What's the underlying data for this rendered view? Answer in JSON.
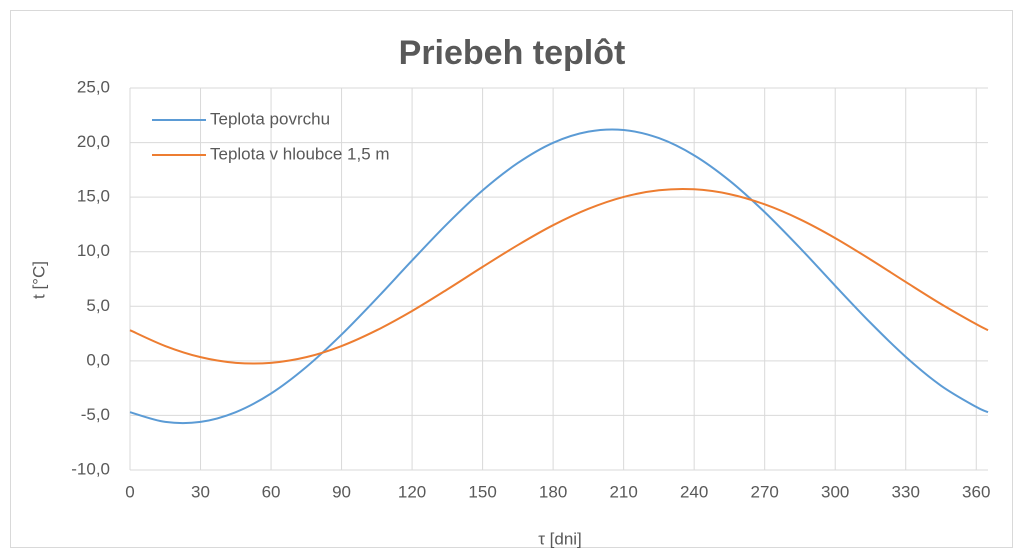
{
  "chart_data": {
    "type": "line",
    "title": "Priebeh teplôt",
    "xlabel": "τ [dni]",
    "ylabel": "t [°C]",
    "x": [
      0,
      15,
      30,
      45,
      60,
      75,
      90,
      105,
      120,
      135,
      150,
      165,
      180,
      195,
      210,
      225,
      240,
      255,
      270,
      285,
      300,
      315,
      330,
      345,
      360,
      365
    ],
    "series": [
      {
        "name": "Teplota povrchu",
        "color": "#5b9bd5",
        "values": [
          -4.7,
          -5.59,
          -5.59,
          -4.7,
          -2.99,
          -0.56,
          2.41,
          5.73,
          9.2,
          12.57,
          15.62,
          18.13,
          19.98,
          21.0,
          21.15,
          20.41,
          18.83,
          16.52,
          13.63,
          10.35,
          6.88,
          3.49,
          0.37,
          -2.27,
          -4.22,
          -4.7
        ]
      },
      {
        "name": "Teplota v hloubce 1,5 m",
        "color": "#ed7d31",
        "values": [
          2.81,
          1.36,
          0.34,
          -0.18,
          -0.18,
          0.34,
          1.36,
          2.81,
          4.57,
          6.55,
          8.61,
          10.61,
          12.43,
          13.93,
          15.02,
          15.63,
          15.72,
          15.28,
          14.34,
          12.97,
          11.25,
          9.29,
          7.23,
          5.21,
          3.36,
          2.81
        ]
      }
    ],
    "xlim": [
      0,
      365
    ],
    "xticks": [
      0,
      30,
      60,
      90,
      120,
      150,
      180,
      210,
      240,
      270,
      300,
      330,
      360
    ],
    "ylim": [
      -10,
      25
    ],
    "yticks": [
      {
        "value": -10,
        "label": "-10,0"
      },
      {
        "value": -5,
        "label": "-5,0"
      },
      {
        "value": 0,
        "label": "0,0"
      },
      {
        "value": 5,
        "label": "5,0"
      },
      {
        "value": 10,
        "label": "10,0"
      },
      {
        "value": 15,
        "label": "15,0"
      },
      {
        "value": 20,
        "label": "20,0"
      },
      {
        "value": 25,
        "label": "25,0"
      }
    ],
    "grid": true,
    "legend": "upper left"
  }
}
